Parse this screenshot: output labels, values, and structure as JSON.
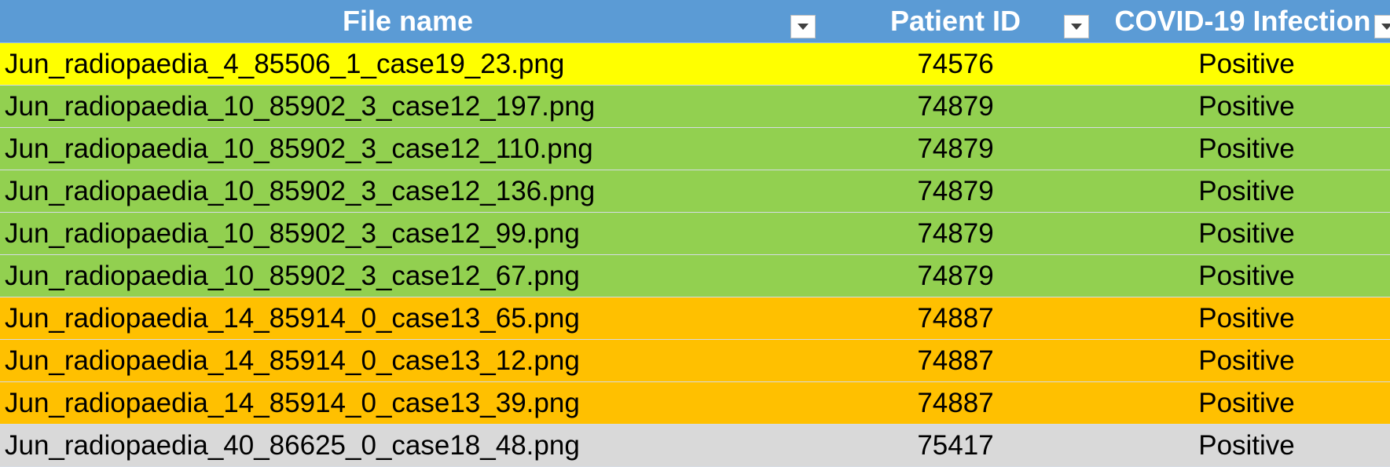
{
  "table": {
    "headers": [
      {
        "label": "File name"
      },
      {
        "label": "Patient ID"
      },
      {
        "label": "COVID-19 Infection"
      }
    ],
    "header_color": "#5b9bd5",
    "rows": [
      {
        "file_name": "Jun_radiopaedia_4_85506_1_case19_23.png",
        "patient_id": "74576",
        "infection": "Positive",
        "color": "#ffff00"
      },
      {
        "file_name": "Jun_radiopaedia_10_85902_3_case12_197.png",
        "patient_id": "74879",
        "infection": "Positive",
        "color": "#92d050"
      },
      {
        "file_name": "Jun_radiopaedia_10_85902_3_case12_110.png",
        "patient_id": "74879",
        "infection": "Positive",
        "color": "#92d050"
      },
      {
        "file_name": "Jun_radiopaedia_10_85902_3_case12_136.png",
        "patient_id": "74879",
        "infection": "Positive",
        "color": "#92d050"
      },
      {
        "file_name": "Jun_radiopaedia_10_85902_3_case12_99.png",
        "patient_id": "74879",
        "infection": "Positive",
        "color": "#92d050"
      },
      {
        "file_name": "Jun_radiopaedia_10_85902_3_case12_67.png",
        "patient_id": "74879",
        "infection": "Positive",
        "color": "#92d050"
      },
      {
        "file_name": "Jun_radiopaedia_14_85914_0_case13_65.png",
        "patient_id": "74887",
        "infection": "Positive",
        "color": "#ffc000"
      },
      {
        "file_name": "Jun_radiopaedia_14_85914_0_case13_12.png",
        "patient_id": "74887",
        "infection": "Positive",
        "color": "#ffc000"
      },
      {
        "file_name": "Jun_radiopaedia_14_85914_0_case13_39.png",
        "patient_id": "74887",
        "infection": "Positive",
        "color": "#ffc000"
      },
      {
        "file_name": "Jun_radiopaedia_40_86625_0_case18_48.png",
        "patient_id": "75417",
        "infection": "Positive",
        "color": "#d9d9d9"
      }
    ]
  },
  "icons": {
    "filter": "dropdown-filter-icon"
  }
}
